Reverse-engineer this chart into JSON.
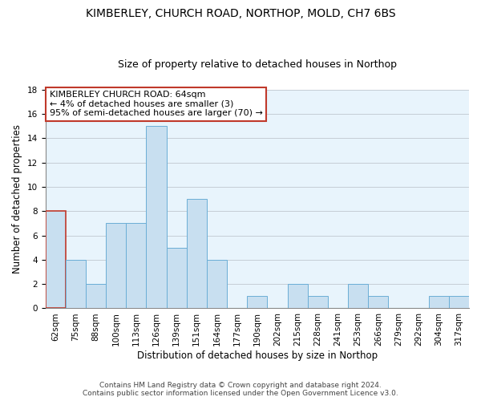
{
  "title": "KIMBERLEY, CHURCH ROAD, NORTHOP, MOLD, CH7 6BS",
  "subtitle": "Size of property relative to detached houses in Northop",
  "xlabel": "Distribution of detached houses by size in Northop",
  "ylabel": "Number of detached properties",
  "bin_labels": [
    "62sqm",
    "75sqm",
    "88sqm",
    "100sqm",
    "113sqm",
    "126sqm",
    "139sqm",
    "151sqm",
    "164sqm",
    "177sqm",
    "190sqm",
    "202sqm",
    "215sqm",
    "228sqm",
    "241sqm",
    "253sqm",
    "266sqm",
    "279sqm",
    "292sqm",
    "304sqm",
    "317sqm"
  ],
  "bar_heights": [
    8,
    4,
    2,
    7,
    7,
    15,
    5,
    9,
    4,
    0,
    1,
    0,
    2,
    1,
    0,
    2,
    1,
    0,
    0,
    1,
    1
  ],
  "bar_color": "#c8dff0",
  "bar_edge_color": "#6baed6",
  "highlight_bar_index": 0,
  "highlight_bar_edge_color": "#c0392b",
  "annotation_title": "KIMBERLEY CHURCH ROAD: 64sqm",
  "annotation_line1": "← 4% of detached houses are smaller (3)",
  "annotation_line2": "95% of semi-detached houses are larger (70) →",
  "annotation_box_color": "#ffffff",
  "annotation_box_edge_color": "#c0392b",
  "ylim": [
    0,
    18
  ],
  "yticks": [
    0,
    2,
    4,
    6,
    8,
    10,
    12,
    14,
    16,
    18
  ],
  "footer_line1": "Contains HM Land Registry data © Crown copyright and database right 2024.",
  "footer_line2": "Contains public sector information licensed under the Open Government Licence v3.0.",
  "background_color": "#ffffff",
  "plot_bg_color": "#e8f4fc",
  "grid_color": "#c5cdd5",
  "title_fontsize": 10,
  "subtitle_fontsize": 9,
  "axis_label_fontsize": 8.5,
  "tick_fontsize": 7.5,
  "annotation_fontsize": 8,
  "footer_fontsize": 6.5
}
